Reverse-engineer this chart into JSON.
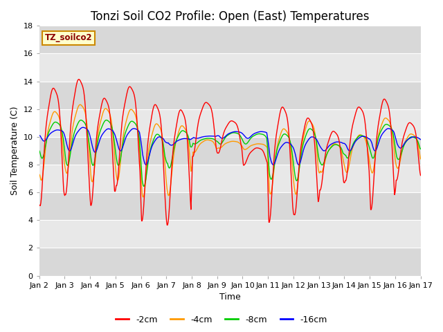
{
  "title": "Tonzi Soil CO2 Profile: Open (East) Temperatures",
  "xlabel": "Time",
  "ylabel": "Soil Temperature (C)",
  "ylim": [
    0,
    18
  ],
  "line_colors": [
    "#ff0000",
    "#ff9900",
    "#00cc00",
    "#0000ff"
  ],
  "line_labels": [
    "-2cm",
    "-4cm",
    "-8cm",
    "-16cm"
  ],
  "bg_color": "#ffffff",
  "plot_bg_color": "#e8e8e8",
  "band_colors": [
    "#e0e0e0",
    "#f0f0f0"
  ],
  "grid_color": "#ffffff",
  "xtick_labels": [
    "Jan 2",
    "Jan 3",
    "Jan 4",
    "Jan 5",
    "Jan 6",
    "Jan 7",
    "Jan 8",
    "Jan 9",
    "Jan 10",
    "Jan 11",
    "Jan 12",
    "Jan 13",
    "Jan 14",
    "Jan 15",
    "Jan 16",
    "Jan 17"
  ],
  "legend_text": "TZ_soilco2",
  "title_fontsize": 12,
  "axis_fontsize": 9,
  "tick_fontsize": 8
}
